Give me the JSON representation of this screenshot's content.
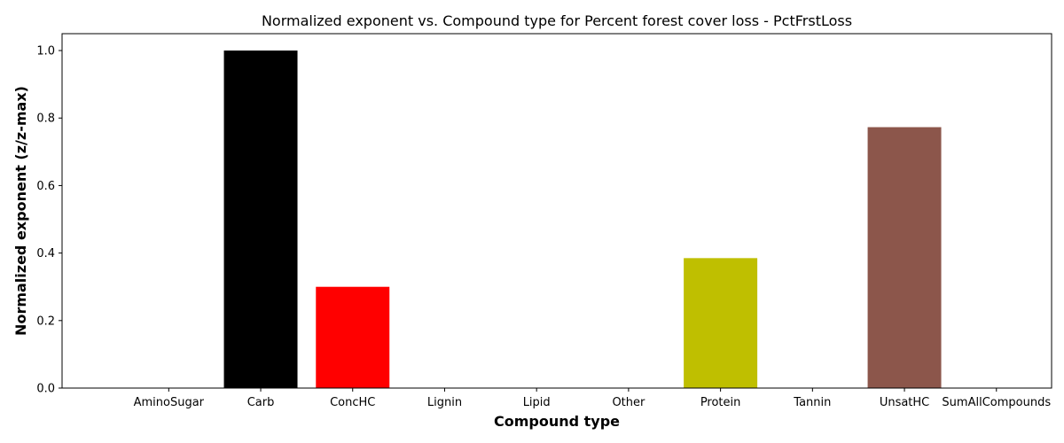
{
  "chart_data": {
    "type": "bar",
    "title": "Normalized exponent vs. Compound type for Percent forest cover loss - PctFrstLoss",
    "xlabel": "Compound type",
    "ylabel": "Normalized exponent (z/z-max)",
    "categories": [
      "AminoSugar",
      "Carb",
      "ConcHC",
      "Lignin",
      "Lipid",
      "Other",
      "Protein",
      "Tannin",
      "UnsatHC",
      "SumAllCompounds"
    ],
    "values": [
      0,
      1.0,
      0.3,
      0,
      0,
      0,
      0.385,
      0,
      0.773,
      0
    ],
    "colors": [
      "#1f77b4",
      "#000000",
      "#ff0000",
      "#1f77b4",
      "#1f77b4",
      "#1f77b4",
      "#bfbf00",
      "#1f77b4",
      "#8c564b",
      "#1f77b4"
    ],
    "ylim": [
      0,
      1.05
    ],
    "yticks": [
      0.0,
      0.2,
      0.4,
      0.6,
      0.8,
      1.0
    ],
    "ytick_labels": [
      "0.0",
      "0.2",
      "0.4",
      "0.6",
      "0.8",
      "1.0"
    ],
    "grid": false,
    "legend": "none"
  }
}
